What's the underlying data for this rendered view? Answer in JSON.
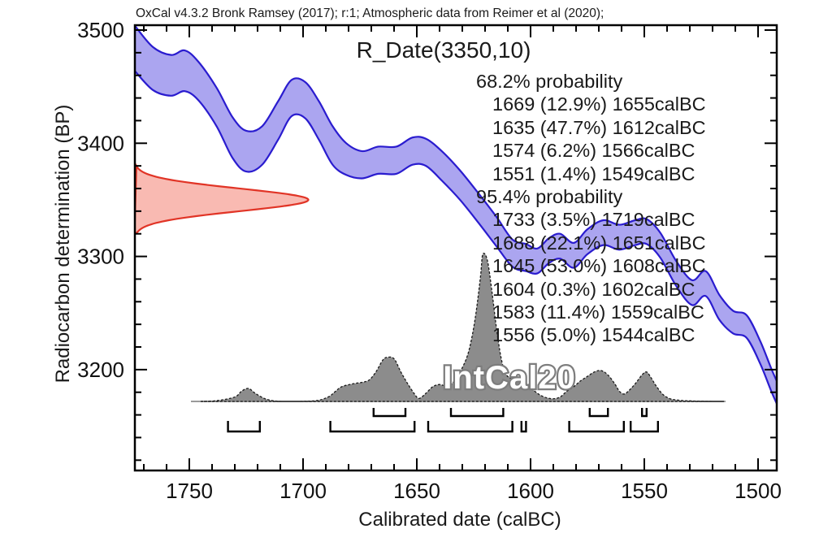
{
  "attribution": "OxCal v4.3.2 Bronk Ramsey (2017); r:1; Atmospheric data from Reimer et al (2020);",
  "legend": {
    "lines": [
      {
        "text": "68.2% probability",
        "header": true
      },
      {
        "text": "1669 (12.9%) 1655calBC",
        "header": false
      },
      {
        "text": "1635 (47.7%) 1612calBC",
        "header": false
      },
      {
        "text": "1574 (6.2%) 1566calBC",
        "header": false
      },
      {
        "text": "1551 (1.4%) 1549calBC",
        "header": false
      },
      {
        "text": "95.4% probability",
        "header": true
      },
      {
        "text": "1733 (3.5%) 1719calBC",
        "header": false
      },
      {
        "text": "1688 (22.1%) 1651calBC",
        "header": false
      },
      {
        "text": "1645 (53.0%) 1608calBC",
        "header": false
      },
      {
        "text": "1604 (0.3%) 1602calBC",
        "header": false
      },
      {
        "text": "1583 (11.4%) 1559calBC",
        "header": false
      },
      {
        "text": "1556 (5.0%) 1544calBC",
        "header": false
      }
    ]
  },
  "chart_data": {
    "type": "area",
    "title": "R_Date(3350,10)",
    "xlabel": "Calibrated date (calBC)",
    "ylabel": "Radiocarbon determination (BP)",
    "x_range": [
      1775,
      1490
    ],
    "y_range": [
      3110,
      3505
    ],
    "x_major_ticks": [
      1750,
      1700,
      1650,
      1600,
      1550,
      1500
    ],
    "x_minor_step": 10,
    "y_major_ticks": [
      3500,
      3400,
      3300,
      3200
    ],
    "y_minor_step": 20,
    "grid": false,
    "colors": {
      "curve_fill": "#a8a2ef",
      "curve_stroke": "#2a1ccf",
      "likelihood_fill": "#f8b3aa",
      "likelihood_stroke": "#e13426",
      "distribution_fill": "#8c8c8c",
      "distribution_stroke": "#1a1a1a",
      "baseline": "#9a9a9a",
      "axis": "#000000"
    },
    "calibration_curve": {
      "name": "IntCal20",
      "points_date_mid_halfwidth": [
        [
          1774,
          3484,
          20
        ],
        [
          1766,
          3466,
          19
        ],
        [
          1758,
          3460,
          18
        ],
        [
          1752,
          3464,
          18
        ],
        [
          1746,
          3455,
          17
        ],
        [
          1738,
          3432,
          17
        ],
        [
          1731,
          3405,
          18
        ],
        [
          1725,
          3393,
          18
        ],
        [
          1718,
          3398,
          17
        ],
        [
          1711,
          3420,
          17
        ],
        [
          1705,
          3440,
          16
        ],
        [
          1699,
          3438,
          16
        ],
        [
          1693,
          3420,
          17
        ],
        [
          1687,
          3398,
          17
        ],
        [
          1681,
          3386,
          14
        ],
        [
          1674,
          3381,
          12
        ],
        [
          1667,
          3385,
          12
        ],
        [
          1659,
          3385,
          12
        ],
        [
          1652,
          3393,
          12
        ],
        [
          1646,
          3392,
          12
        ],
        [
          1639,
          3380,
          13
        ],
        [
          1631,
          3363,
          13
        ],
        [
          1623,
          3343,
          13
        ],
        [
          1615,
          3322,
          13
        ],
        [
          1608,
          3303,
          12
        ],
        [
          1602,
          3299,
          12
        ],
        [
          1597,
          3296,
          11
        ],
        [
          1592,
          3305,
          11
        ],
        [
          1587,
          3309,
          11
        ],
        [
          1581,
          3301,
          11
        ],
        [
          1575,
          3313,
          11
        ],
        [
          1568,
          3321,
          11
        ],
        [
          1561,
          3317,
          11
        ],
        [
          1554,
          3321,
          11
        ],
        [
          1549,
          3322,
          11
        ],
        [
          1543,
          3310,
          11
        ],
        [
          1536,
          3285,
          11
        ],
        [
          1529,
          3268,
          11
        ],
        [
          1523,
          3276,
          11
        ],
        [
          1517,
          3255,
          11
        ],
        [
          1511,
          3242,
          10
        ],
        [
          1505,
          3238,
          10
        ],
        [
          1499,
          3215,
          10
        ],
        [
          1494,
          3190,
          10
        ],
        [
          1490,
          3172,
          10
        ]
      ]
    },
    "radiocarbon_date": {
      "label": "R_Date(3350,10)",
      "mean_bp": 3350,
      "sigma_bp": 10
    },
    "calibrated_distribution": {
      "points_date_relheight": [
        [
          1745,
          0
        ],
        [
          1738,
          0.005
        ],
        [
          1730,
          0.03
        ],
        [
          1727,
          0.07
        ],
        [
          1724,
          0.088
        ],
        [
          1721,
          0.055
        ],
        [
          1717,
          0.02
        ],
        [
          1713,
          0.004
        ],
        [
          1708,
          0
        ],
        [
          1695,
          0.004
        ],
        [
          1689,
          0.03
        ],
        [
          1686,
          0.065
        ],
        [
          1683,
          0.1
        ],
        [
          1678,
          0.12
        ],
        [
          1674,
          0.13
        ],
        [
          1671,
          0.145
        ],
        [
          1668,
          0.2
        ],
        [
          1665,
          0.28
        ],
        [
          1663,
          0.3
        ],
        [
          1660,
          0.29
        ],
        [
          1657,
          0.2
        ],
        [
          1654,
          0.12
        ],
        [
          1651,
          0.05
        ],
        [
          1649,
          0.02
        ],
        [
          1646,
          0.055
        ],
        [
          1643,
          0.1
        ],
        [
          1640,
          0.115
        ],
        [
          1637,
          0.105
        ],
        [
          1634,
          0.13
        ],
        [
          1631,
          0.2
        ],
        [
          1628,
          0.3
        ],
        [
          1626,
          0.42
        ],
        [
          1624,
          0.6
        ],
        [
          1622,
          0.85
        ],
        [
          1621,
          1.0
        ],
        [
          1619,
          0.96
        ],
        [
          1617,
          0.75
        ],
        [
          1615,
          0.5
        ],
        [
          1613,
          0.3
        ],
        [
          1611,
          0.19
        ],
        [
          1608,
          0.15
        ],
        [
          1605,
          0.14
        ],
        [
          1602,
          0.12
        ],
        [
          1599,
          0.08
        ],
        [
          1596,
          0.045
        ],
        [
          1593,
          0.025
        ],
        [
          1590,
          0.018
        ],
        [
          1587,
          0.03
        ],
        [
          1584,
          0.07
        ],
        [
          1581,
          0.1
        ],
        [
          1578,
          0.14
        ],
        [
          1575,
          0.17
        ],
        [
          1572,
          0.2
        ],
        [
          1569,
          0.21
        ],
        [
          1566,
          0.18
        ],
        [
          1563,
          0.12
        ],
        [
          1561,
          0.07
        ],
        [
          1559,
          0.05
        ],
        [
          1557,
          0.07
        ],
        [
          1554,
          0.12
        ],
        [
          1551,
          0.18
        ],
        [
          1549,
          0.2
        ],
        [
          1547,
          0.16
        ],
        [
          1545,
          0.11
        ],
        [
          1542,
          0.05
        ],
        [
          1539,
          0.02
        ],
        [
          1536,
          0.01
        ],
        [
          1532,
          0.005
        ],
        [
          1527,
          0.002
        ],
        [
          1520,
          0
        ],
        [
          1515,
          0
        ]
      ]
    },
    "ranges_68": [
      {
        "from": 1669,
        "pct": 12.9,
        "to": 1655
      },
      {
        "from": 1635,
        "pct": 47.7,
        "to": 1612
      },
      {
        "from": 1574,
        "pct": 6.2,
        "to": 1566
      },
      {
        "from": 1551,
        "pct": 1.4,
        "to": 1549
      }
    ],
    "ranges_95": [
      {
        "from": 1733,
        "pct": 3.5,
        "to": 1719
      },
      {
        "from": 1688,
        "pct": 22.1,
        "to": 1651
      },
      {
        "from": 1645,
        "pct": 53.0,
        "to": 1608
      },
      {
        "from": 1604,
        "pct": 0.3,
        "to": 1602
      },
      {
        "from": 1583,
        "pct": 11.4,
        "to": 1559
      },
      {
        "from": 1556,
        "pct": 5.0,
        "to": 1544
      }
    ]
  }
}
